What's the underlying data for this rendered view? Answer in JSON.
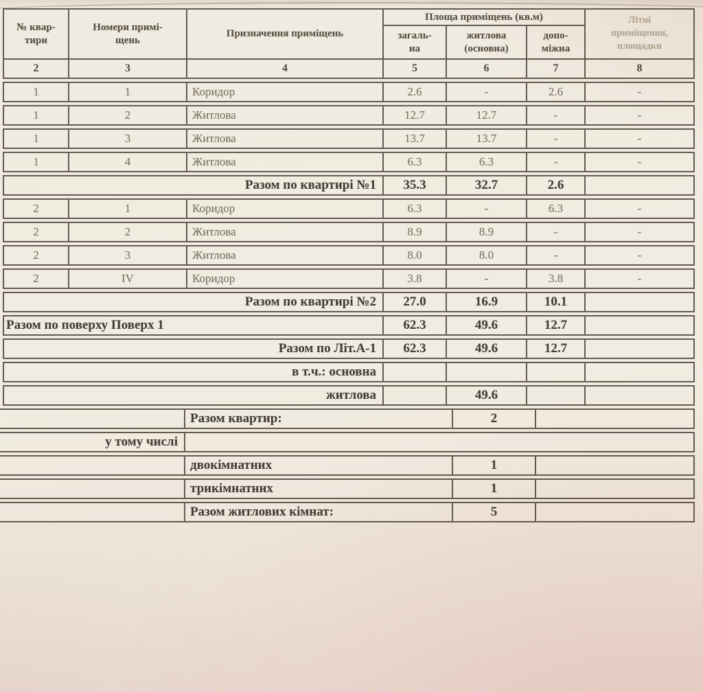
{
  "doc": {
    "header": {
      "col_apartment": "№ квар-\nтири",
      "col_room_numbers": "Номери примі-\nщень",
      "col_purpose": "Призначення приміщень",
      "area_group_title": "Площа приміщень (кв.м)",
      "col_total": "загаль-\nна",
      "col_living": "житлова\n(основна)",
      "col_auxiliary": "допо-\nміжна",
      "col_summer": "Літні\nприміщення,\nплощадки",
      "numbering": {
        "c2": "2",
        "c3": "3",
        "c4": "4",
        "c5": "5",
        "c6": "6",
        "c7": "7",
        "c8": "8"
      }
    },
    "rows": [
      {
        "apt": "1",
        "num": "1",
        "purpose": "Коридор",
        "total": "2.6",
        "living": "-",
        "aux": "2.6",
        "summer": "-"
      },
      {
        "apt": "1",
        "num": "2",
        "purpose": "Житлова",
        "total": "12.7",
        "living": "12.7",
        "aux": "-",
        "summer": "-"
      },
      {
        "apt": "1",
        "num": "3",
        "purpose": "Житлова",
        "total": "13.7",
        "living": "13.7",
        "aux": "-",
        "summer": "-"
      },
      {
        "apt": "1",
        "num": "4",
        "purpose": "Житлова",
        "total": "6.3",
        "living": "6.3",
        "aux": "-",
        "summer": "-"
      },
      {
        "apt": "2",
        "num": "1",
        "purpose": "Коридор",
        "total": "6.3",
        "living": "-",
        "aux": "6.3",
        "summer": "-"
      },
      {
        "apt": "2",
        "num": "2",
        "purpose": "Житлова",
        "total": "8.9",
        "living": "8.9",
        "aux": "-",
        "summer": "-"
      },
      {
        "apt": "2",
        "num": "3",
        "purpose": "Житлова",
        "total": "8.0",
        "living": "8.0",
        "aux": "-",
        "summer": "-"
      },
      {
        "apt": "2",
        "num": "IV",
        "purpose": "Коридор",
        "total": "3.8",
        "living": "-",
        "aux": "3.8",
        "summer": "-"
      }
    ],
    "totals": {
      "apt1": {
        "label": "Разом по квартирі №1",
        "total": "35.3",
        "living": "32.7",
        "aux": "2.6"
      },
      "apt2": {
        "label": "Разом по квартирі №2",
        "total": "27.0",
        "living": "16.9",
        "aux": "10.1"
      },
      "floor": {
        "label": "Разом по поверху Поверх 1",
        "total": "62.3",
        "living": "49.6",
        "aux": "12.7"
      },
      "building": {
        "label": "Разом по Літ.А-1",
        "total": "62.3",
        "living": "49.6",
        "aux": "12.7"
      },
      "including_main_label": "в т.ч.: основна",
      "living_label": "житлова",
      "living_value": "49.6"
    },
    "summary": {
      "apartments_label": "Разом квартир:",
      "apartments_value": "2",
      "including_label": "у тому числі",
      "two_room_label": "двокімнатних",
      "two_room_value": "1",
      "three_room_label": "трикімнатних",
      "three_room_value": "1",
      "rooms_total_label": "Разом житлових кімнат:",
      "rooms_total_value": "5"
    }
  }
}
